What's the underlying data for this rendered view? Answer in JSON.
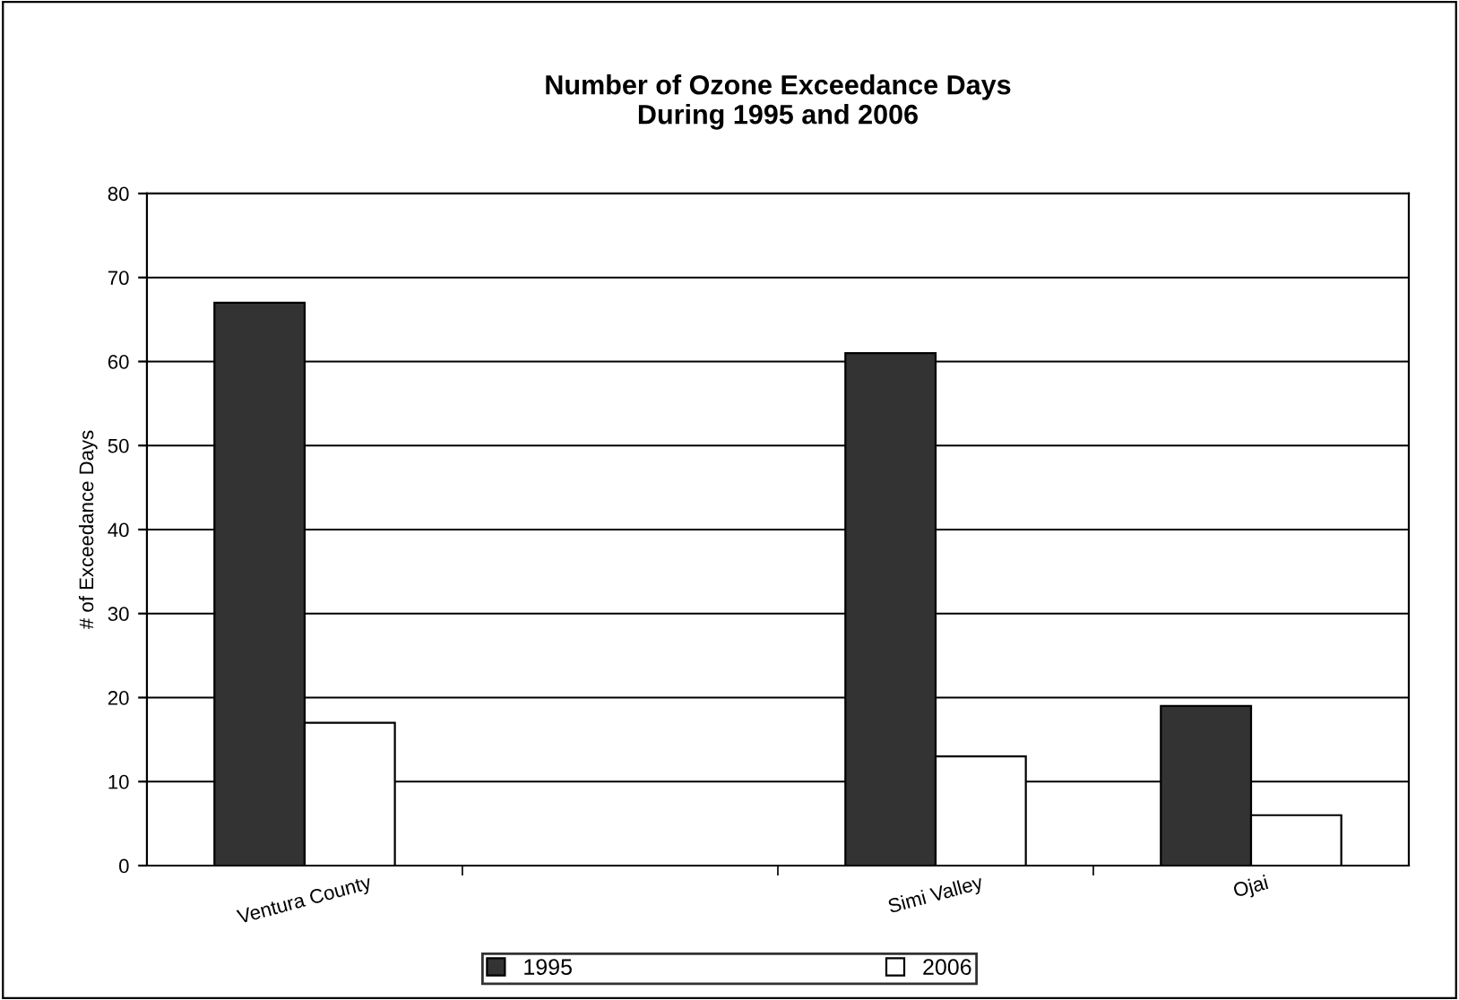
{
  "chart_data": {
    "type": "bar",
    "title": "Number of Ozone Exceedance Days\nDuring 1995 and 2006",
    "ylabel": "# of Exceedance Days",
    "categories": [
      "Ventura County",
      null,
      "Simi Valley",
      "Ojai"
    ],
    "series": [
      {
        "name": "1995",
        "color": "#333333",
        "values": [
          67,
          null,
          61,
          19
        ]
      },
      {
        "name": "2006",
        "color": "#ffffff",
        "values": [
          17,
          null,
          13,
          6
        ]
      }
    ],
    "ylim": [
      0,
      80
    ],
    "yticks": [
      0,
      10,
      20,
      30,
      40,
      50,
      60,
      70,
      80
    ],
    "grid": "y",
    "legend": "bottom"
  }
}
